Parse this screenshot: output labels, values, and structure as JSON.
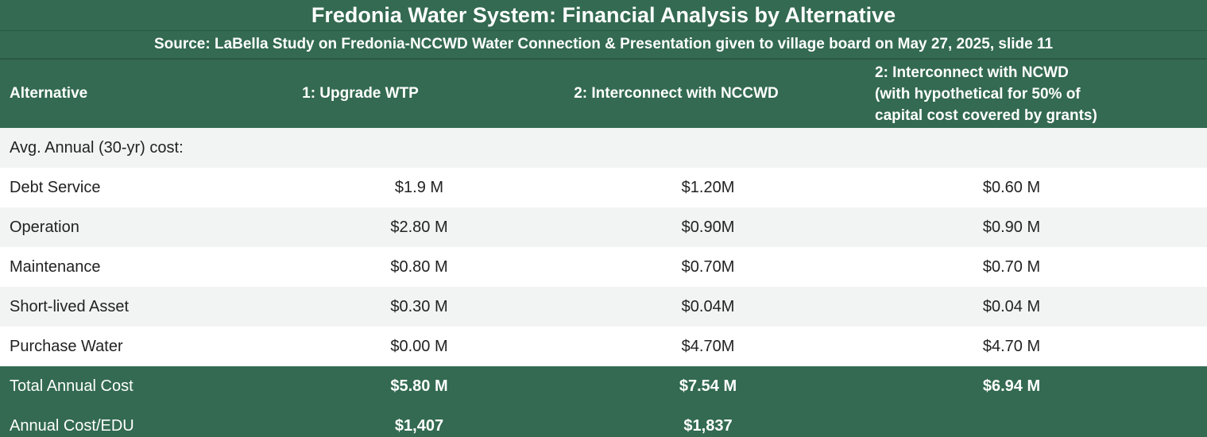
{
  "title": "Fredonia Water System: Financial Analysis by Alternative",
  "subtitle": "Source: LaBella Study on Fredonia-NCCWD Water Connection &  Presentation given to village board on May 27, 2025, slide 11",
  "table": {
    "headers": [
      "Alternative",
      "1: Upgrade WTP",
      "2: Interconnect with NCCWD",
      "2: Interconnect with NCWD\n(with hypothetical for 50% of\ncapital cost covered by grants)"
    ],
    "header_c3_lines": [
      "2: Interconnect with NCWD",
      "(with hypothetical for 50% of",
      "capital cost covered by grants)"
    ],
    "rows": [
      {
        "label": "Avg. Annual (30-yr) cost:",
        "values": [
          "",
          "",
          ""
        ]
      },
      {
        "label": "Debt Service",
        "values": [
          "$1.9 M",
          "$1.20M",
          "$0.60 M"
        ]
      },
      {
        "label": "Operation",
        "values": [
          "$2.80 M",
          "$0.90M",
          "$0.90 M"
        ]
      },
      {
        "label": "Maintenance",
        "values": [
          "$0.80 M",
          "$0.70M",
          "$0.70 M"
        ]
      },
      {
        "label": "Short-lived Asset",
        "values": [
          "$0.30 M",
          "$0.04M",
          "$0.04 M"
        ]
      },
      {
        "label": "Purchase Water",
        "values": [
          "$0.00 M",
          "$4.70M",
          "$4.70 M"
        ]
      }
    ],
    "totals": [
      {
        "label": "Total Annual Cost",
        "values": [
          "$5.80 M",
          "$7.54 M",
          "$6.94 M"
        ]
      },
      {
        "label": "Annual Cost/EDU",
        "values": [
          "$1,407",
          "$1,837",
          ""
        ]
      }
    ]
  },
  "colors": {
    "header_green": "#336a51",
    "row_light": "#ffffff",
    "row_shade": "#f2f4f3"
  }
}
